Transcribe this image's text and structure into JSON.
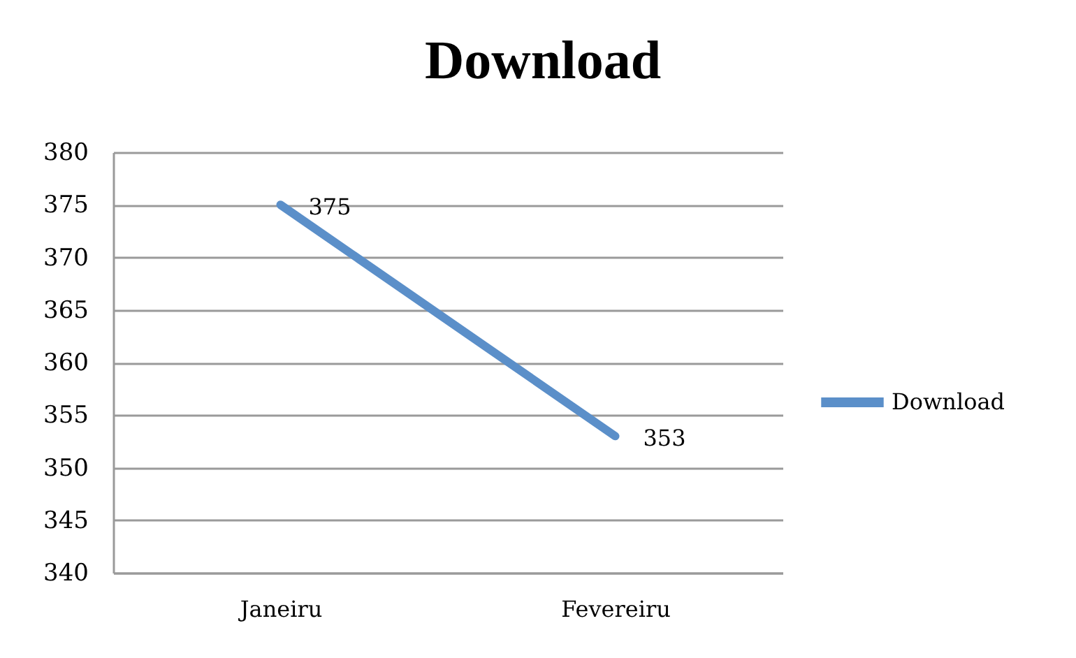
{
  "chart_data": {
    "type": "line",
    "title": "Download",
    "categories": [
      "Janeiru",
      "Fevereiru"
    ],
    "series": [
      {
        "name": "Download",
        "color": "#5b8fc9",
        "values": [
          375,
          353
        ]
      }
    ],
    "ylim": [
      340,
      380
    ],
    "yticks": [
      340,
      345,
      350,
      355,
      360,
      365,
      370,
      375,
      380
    ],
    "grid": "y",
    "legend": "right",
    "data_labels": true,
    "line_style": "solid"
  }
}
